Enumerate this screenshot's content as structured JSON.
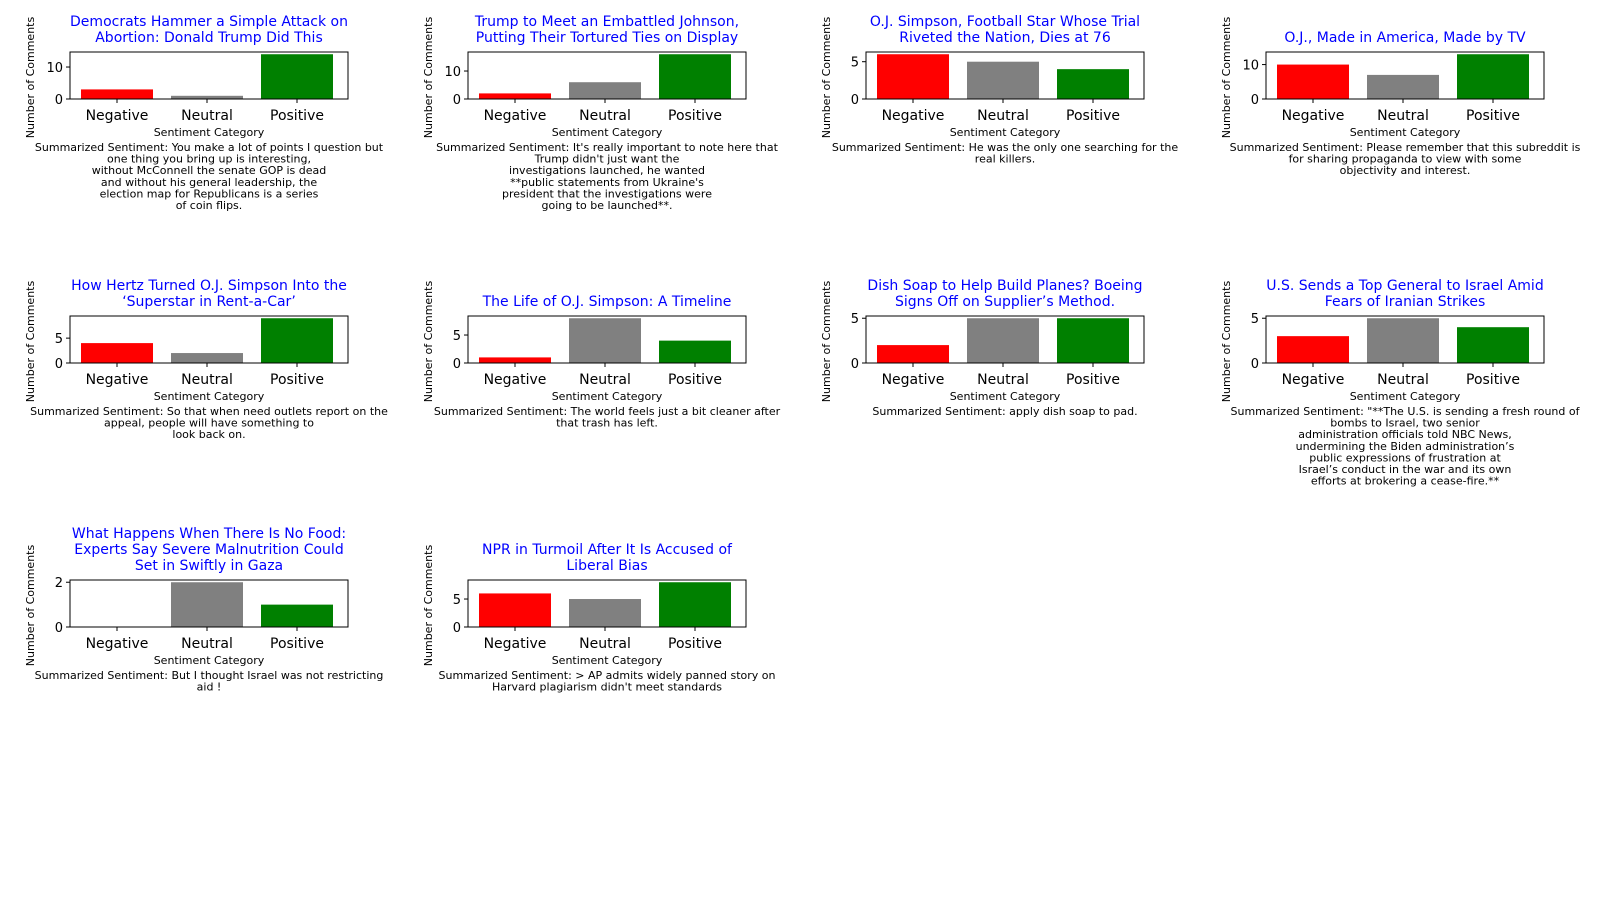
{
  "summary_prefix": "Summarized Sentiment:",
  "colors": {
    "Negative": "#ff0000",
    "Neutral": "#808080",
    "Positive": "#008000",
    "title": "#0000ff"
  },
  "chart_data": [
    {
      "type": "bar",
      "title": "Democrats Hammer a Simple Attack on Abortion: Donald Trump Did This",
      "title_lines": [
        "Democrats Hammer a Simple Attack on",
        "Abortion: Donald Trump Did This"
      ],
      "categories": [
        "Negative",
        "Neutral",
        "Positive"
      ],
      "values": [
        3,
        1,
        14
      ],
      "xlabel": "Sentiment Category",
      "ylabel": "Number of Comments",
      "ylim": [
        0,
        14.7
      ],
      "yticks": [
        0,
        10
      ],
      "summary_lines": [
        "Summarized Sentiment: You make a lot of points I question but",
        "one thing you bring up is interesting,",
        "without McConnell the senate GOP is dead",
        "and without his general leadership, the",
        "election map for Republicans is a series",
        "of coin flips."
      ]
    },
    {
      "type": "bar",
      "title": "Trump to Meet an Embattled Johnson, Putting Their Tortured Ties on Display",
      "title_lines": [
        "Trump to Meet an Embattled Johnson,",
        "Putting Their Tortured Ties on Display"
      ],
      "categories": [
        "Negative",
        "Neutral",
        "Positive"
      ],
      "values": [
        2,
        6,
        16
      ],
      "xlabel": "Sentiment Category",
      "ylabel": "Number of Comments",
      "ylim": [
        0,
        16.8
      ],
      "yticks": [
        0,
        10
      ],
      "summary_lines": [
        "Summarized Sentiment: It's really important to note here that",
        "Trump didn't just want the",
        "investigations launched, he wanted",
        "**public statements from Ukraine's",
        "president that the investigations were",
        "going to be launched**."
      ]
    },
    {
      "type": "bar",
      "title": "O.J. Simpson, Football Star Whose Trial Riveted the Nation, Dies at 76",
      "title_lines": [
        "O.J. Simpson, Football Star Whose Trial",
        "Riveted the Nation, Dies at 76"
      ],
      "categories": [
        "Negative",
        "Neutral",
        "Positive"
      ],
      "values": [
        6,
        5,
        4
      ],
      "xlabel": "Sentiment Category",
      "ylabel": "Number of Comments",
      "ylim": [
        0,
        6.3
      ],
      "yticks": [
        0,
        5
      ],
      "summary_lines": [
        "Summarized Sentiment: He was the only one searching for the",
        "real killers."
      ]
    },
    {
      "type": "bar",
      "title": "O.J., Made in America, Made by TV",
      "title_lines": [
        "O.J., Made in America, Made by TV"
      ],
      "categories": [
        "Negative",
        "Neutral",
        "Positive"
      ],
      "values": [
        10,
        7,
        13
      ],
      "xlabel": "Sentiment Category",
      "ylabel": "Number of Comments",
      "ylim": [
        0,
        13.65
      ],
      "yticks": [
        0,
        10
      ],
      "summary_lines": [
        "Summarized Sentiment: Please remember that this subreddit is",
        "for sharing propaganda to view with some",
        "objectivity and interest."
      ]
    },
    {
      "type": "bar",
      "title": "How Hertz Turned O.J. Simpson Into the ‘Superstar in Rent-a-Car’",
      "title_lines": [
        "How Hertz Turned O.J. Simpson Into the",
        "‘Superstar in Rent-a-Car’"
      ],
      "categories": [
        "Negative",
        "Neutral",
        "Positive"
      ],
      "values": [
        4,
        2,
        9
      ],
      "xlabel": "Sentiment Category",
      "ylabel": "Number of Comments",
      "ylim": [
        0,
        9.45
      ],
      "yticks": [
        0,
        5
      ],
      "summary_lines": [
        "Summarized Sentiment: So that when need outlets report on the",
        "appeal, people will have something to",
        "look back on."
      ]
    },
    {
      "type": "bar",
      "title": "The Life of O.J. Simpson: A Timeline",
      "title_lines": [
        "The Life of O.J. Simpson: A Timeline"
      ],
      "categories": [
        "Negative",
        "Neutral",
        "Positive"
      ],
      "values": [
        1,
        8,
        4
      ],
      "xlabel": "Sentiment Category",
      "ylabel": "Number of Comments",
      "ylim": [
        0,
        8.4
      ],
      "yticks": [
        0,
        5
      ],
      "summary_lines": [
        "Summarized Sentiment: The world feels just a bit cleaner after",
        "that trash has left."
      ]
    },
    {
      "type": "bar",
      "title": "Dish Soap to Help Build Planes? Boeing Signs Off on Supplier’s Method.",
      "title_lines": [
        "Dish Soap to Help Build Planes? Boeing",
        "Signs Off on Supplier’s Method."
      ],
      "categories": [
        "Negative",
        "Neutral",
        "Positive"
      ],
      "values": [
        2,
        5,
        5
      ],
      "xlabel": "Sentiment Category",
      "ylabel": "Number of Comments",
      "ylim": [
        0,
        5.25
      ],
      "yticks": [
        0,
        5
      ],
      "summary_lines": [
        "Summarized Sentiment: apply dish soap to pad."
      ]
    },
    {
      "type": "bar",
      "title": "U.S. Sends a Top General to Israel Amid Fears of Iranian Strikes",
      "title_lines": [
        "U.S. Sends a Top General to Israel Amid",
        "Fears of Iranian Strikes"
      ],
      "categories": [
        "Negative",
        "Neutral",
        "Positive"
      ],
      "values": [
        3,
        5,
        4
      ],
      "xlabel": "Sentiment Category",
      "ylabel": "Number of Comments",
      "ylim": [
        0,
        5.25
      ],
      "yticks": [
        0,
        5
      ],
      "summary_lines": [
        "Summarized Sentiment: \"**The U.S. is sending a fresh round of",
        "bombs to Israel, two senior",
        "administration officials told NBC News,",
        "undermining the Biden administration’s",
        "public expressions of frustration at",
        "Israel’s conduct in the war and its own",
        "efforts at brokering a cease-fire.**"
      ]
    },
    {
      "type": "bar",
      "title": "What Happens When There Is No Food: Experts Say Severe Malnutrition Could Set in Swiftly in Gaza",
      "title_lines": [
        "What Happens When There Is No Food:",
        "Experts Say Severe Malnutrition Could",
        "Set in Swiftly in Gaza"
      ],
      "categories": [
        "Negative",
        "Neutral",
        "Positive"
      ],
      "values": [
        0,
        2,
        1
      ],
      "xlabel": "Sentiment Category",
      "ylabel": "Number of Comments",
      "ylim": [
        0,
        2.1
      ],
      "yticks": [
        0,
        2
      ],
      "summary_lines": [
        "Summarized Sentiment: But I thought Israel was not restricting",
        "aid !"
      ]
    },
    {
      "type": "bar",
      "title": "NPR in Turmoil After It Is Accused of Liberal Bias",
      "title_lines": [
        "NPR in Turmoil After It Is Accused of",
        "Liberal Bias"
      ],
      "categories": [
        "Negative",
        "Neutral",
        "Positive"
      ],
      "values": [
        6,
        5,
        8
      ],
      "xlabel": "Sentiment Category",
      "ylabel": "Number of Comments",
      "ylim": [
        0,
        8.4
      ],
      "yticks": [
        0,
        5
      ],
      "summary_lines": [
        "Summarized Sentiment: > AP admits widely panned story on",
        "Harvard plagiarism didn't meet standards"
      ]
    }
  ]
}
